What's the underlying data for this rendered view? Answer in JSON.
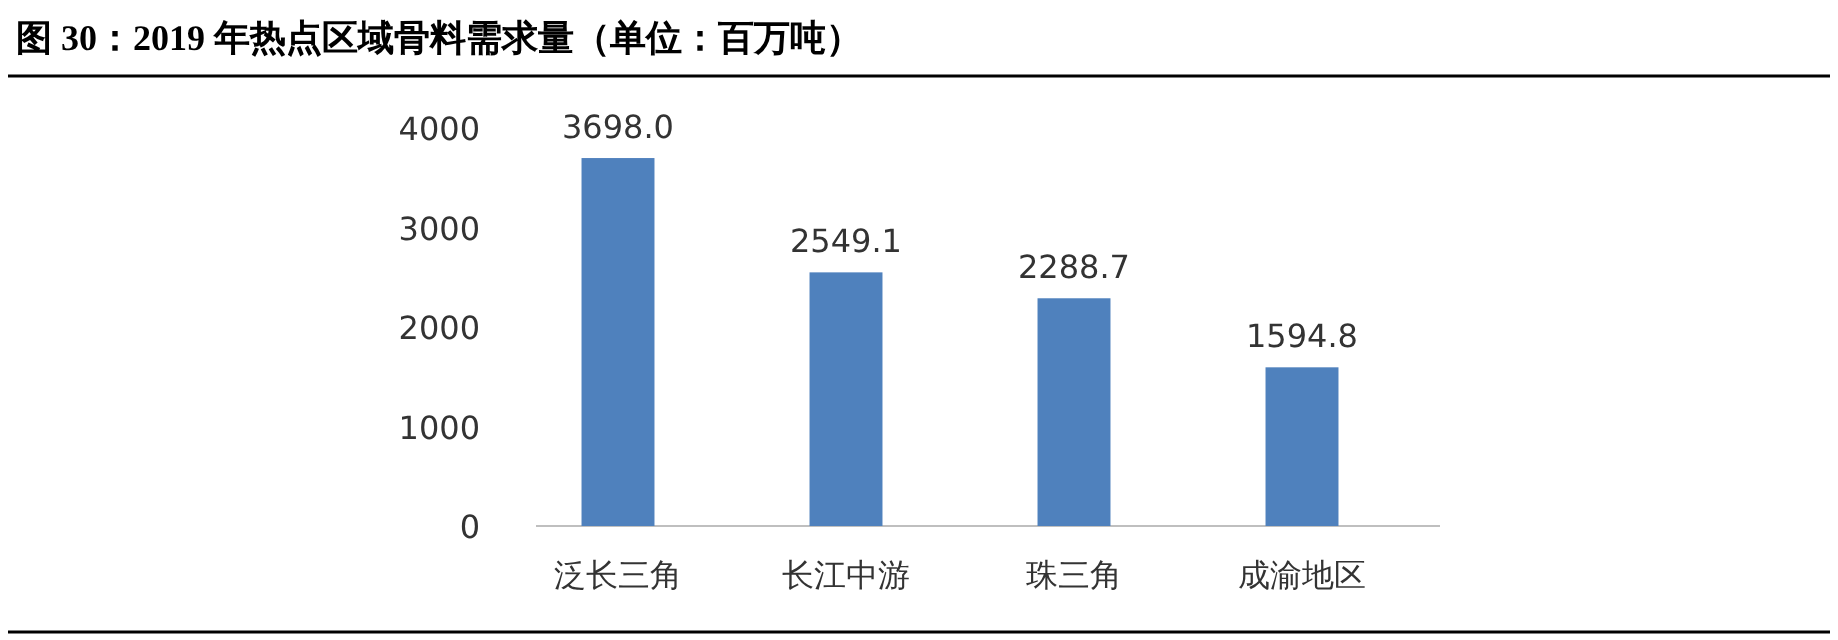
{
  "chart_data": {
    "type": "bar",
    "title": "图 30：2019 年热点区域骨料需求量（单位：百万吨）",
    "categories": [
      "泛长三角",
      "长江中游",
      "珠三角",
      "成渝地区"
    ],
    "values": [
      3698.0,
      2549.1,
      2288.7,
      1594.8
    ],
    "color": "#4f81bd",
    "ylim": [
      0,
      4000
    ],
    "yticks": [
      0,
      1000,
      2000,
      3000,
      4000
    ],
    "value_labels": [
      "3698.0",
      "2549.1",
      "2288.7",
      "1594.8"
    ]
  }
}
